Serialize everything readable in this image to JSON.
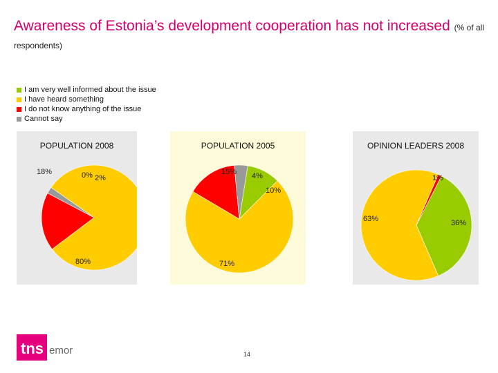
{
  "title": {
    "main": "Awareness of Estonia’s development cooperation has not increased",
    "sub": "(% of all respondents)"
  },
  "legend": [
    {
      "label": "I am very well informed about the issue",
      "color": "#99cc00"
    },
    {
      "label": "I have heard something",
      "color": "#ffcc00"
    },
    {
      "label": "I do not know anything of the issue",
      "color": "#ff0000"
    },
    {
      "label": "Cannot say",
      "color": "#999999"
    }
  ],
  "chart_data": [
    {
      "type": "pie",
      "title": "POPULATION 2008",
      "categories": [
        "I am very well informed about the issue",
        "I have heard something",
        "I do not know anything of the issue",
        "Cannot say"
      ],
      "values": [
        0,
        80,
        18,
        2
      ],
      "labels": [
        "0%",
        "80%",
        "18%",
        "2%"
      ]
    },
    {
      "type": "pie",
      "title": "POPULATION 2005",
      "categories": [
        "I am very well informed about the issue",
        "I have heard something",
        "I do not know anything of the issue",
        "Cannot say"
      ],
      "values": [
        10,
        71,
        15,
        4
      ],
      "labels": [
        "10%",
        "71%",
        "15%",
        "4%"
      ]
    },
    {
      "type": "pie",
      "title": "OPINION LEADERS 2008",
      "categories": [
        "I am very well informed about the issue",
        "I have heard something",
        "I do not know anything of the issue",
        "Cannot say"
      ],
      "values": [
        36,
        63,
        1,
        0
      ],
      "labels": [
        "36%",
        "63%",
        "1%",
        ""
      ]
    }
  ],
  "colors": {
    "title": "#d4006f",
    "logo": "#e5007e",
    "panel_bg": "#e9e9e9",
    "panel_bg_highlight": "#fdfbd9"
  },
  "logo": {
    "brand": "tns",
    "suffix": "emor"
  },
  "page_number": "14"
}
